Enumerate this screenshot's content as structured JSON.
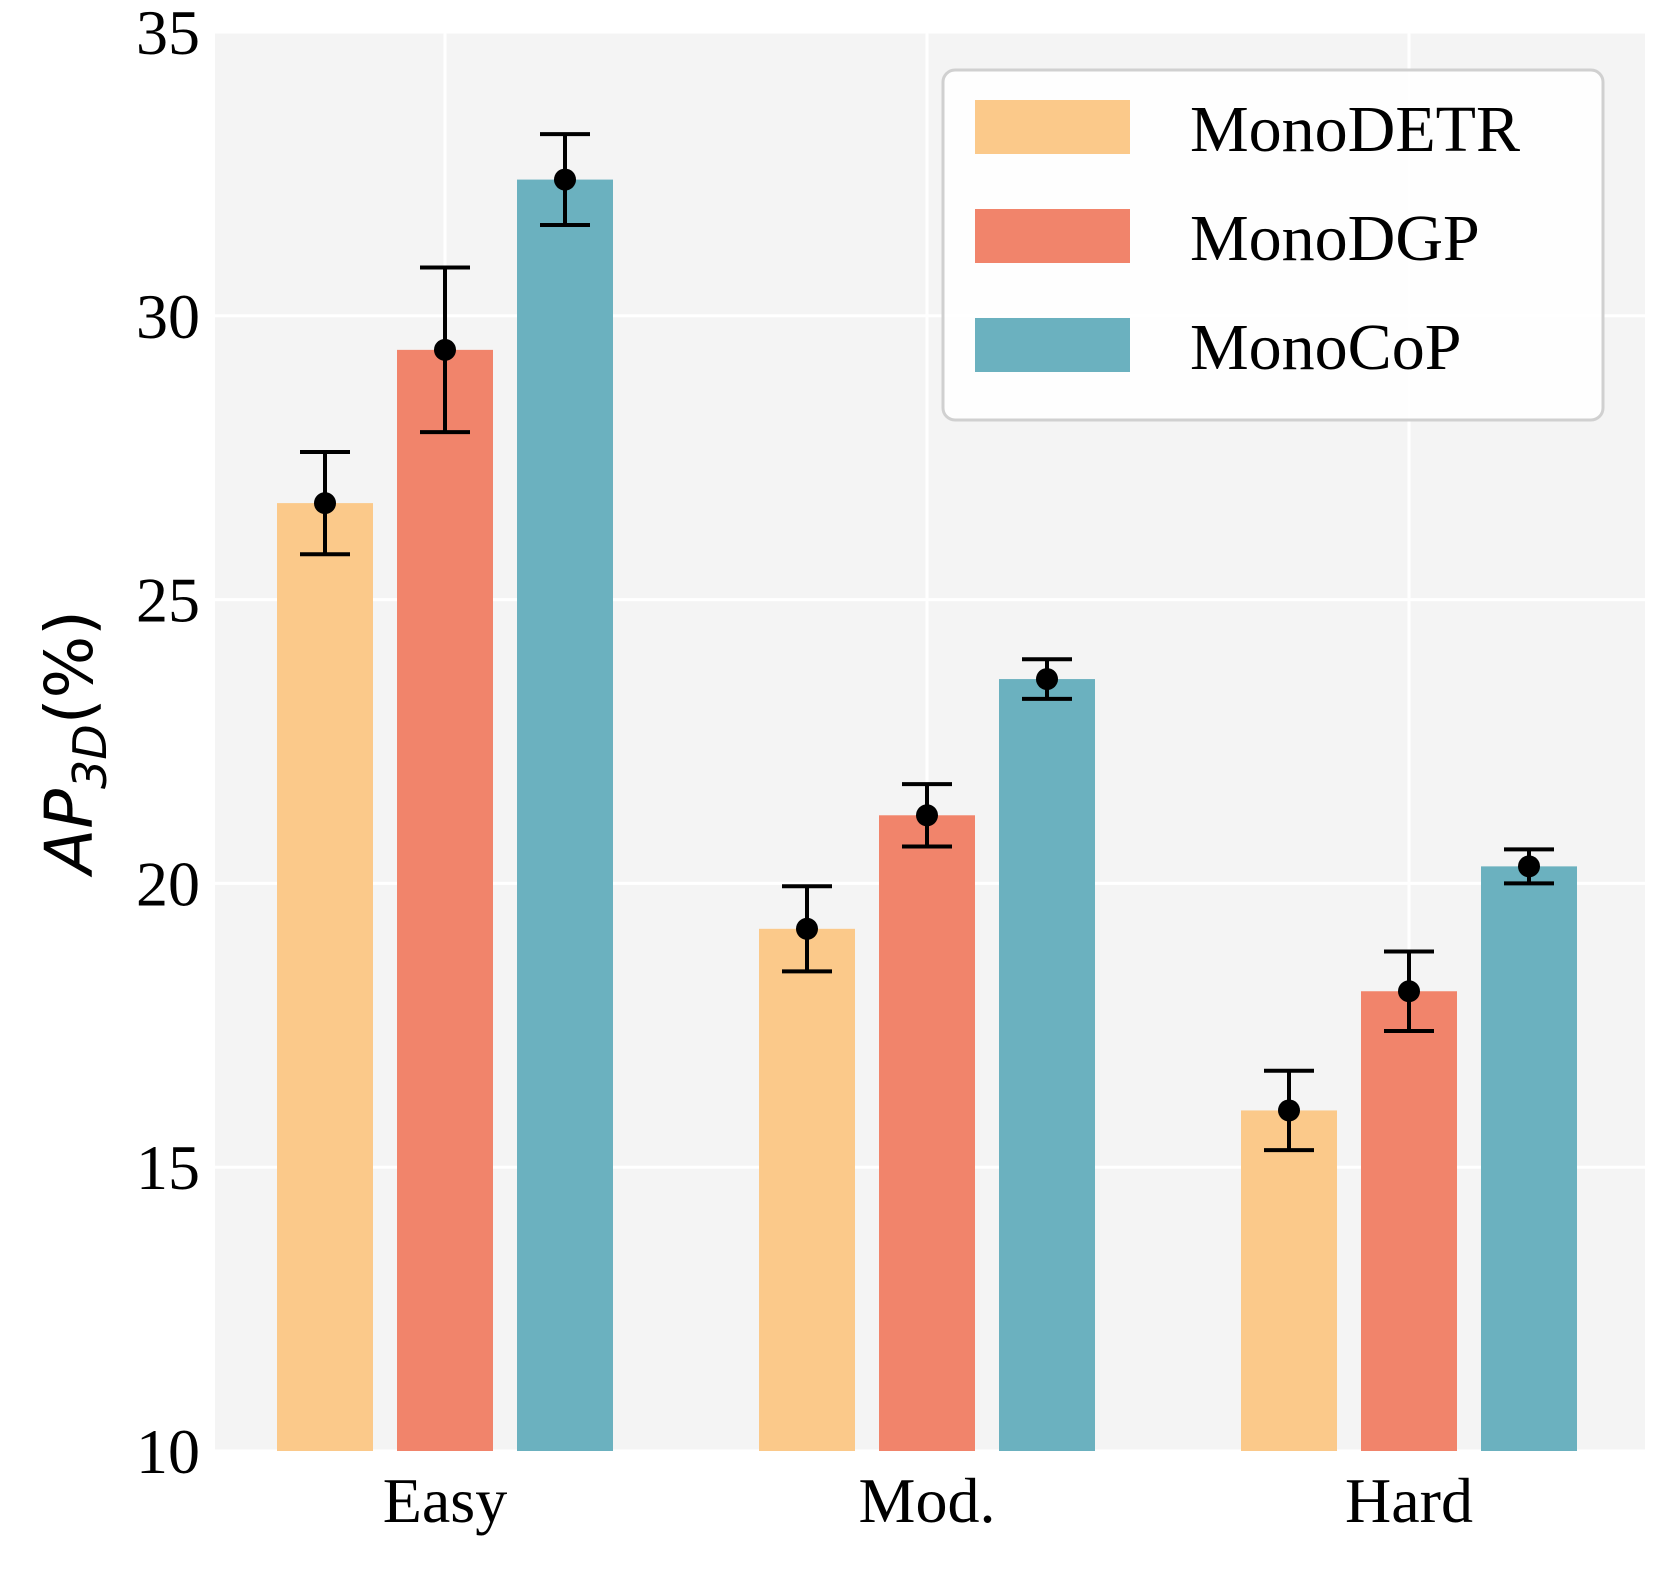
{
  "chart_data": {
    "type": "bar",
    "title": "",
    "xlabel": "",
    "ylabel": {
      "main": "AP",
      "subscript": "3D",
      "suffix": "(%)"
    },
    "ylim": [
      10,
      35
    ],
    "yticks": [
      "10",
      "15",
      "20",
      "25",
      "30",
      "35"
    ],
    "ytick_values": [
      10,
      15,
      20,
      25,
      30,
      35
    ],
    "grid": true,
    "categories": [
      "Easy",
      "Mod.",
      "Hard"
    ],
    "legend_position": "top-right",
    "series": [
      {
        "name": "MonoDETR",
        "color": "#fbc98a",
        "values": [
          26.7,
          19.2,
          16.0
        ],
        "errors": [
          0.9,
          0.75,
          0.7
        ]
      },
      {
        "name": "MonoDGP",
        "color": "#f1846b",
        "values": [
          29.4,
          21.2,
          18.1
        ],
        "errors": [
          1.45,
          0.55,
          0.7
        ]
      },
      {
        "name": "MonoCoP",
        "color": "#6bb1bf",
        "values": [
          32.4,
          23.6,
          20.3
        ],
        "errors": [
          0.8,
          0.35,
          0.3
        ]
      }
    ]
  }
}
